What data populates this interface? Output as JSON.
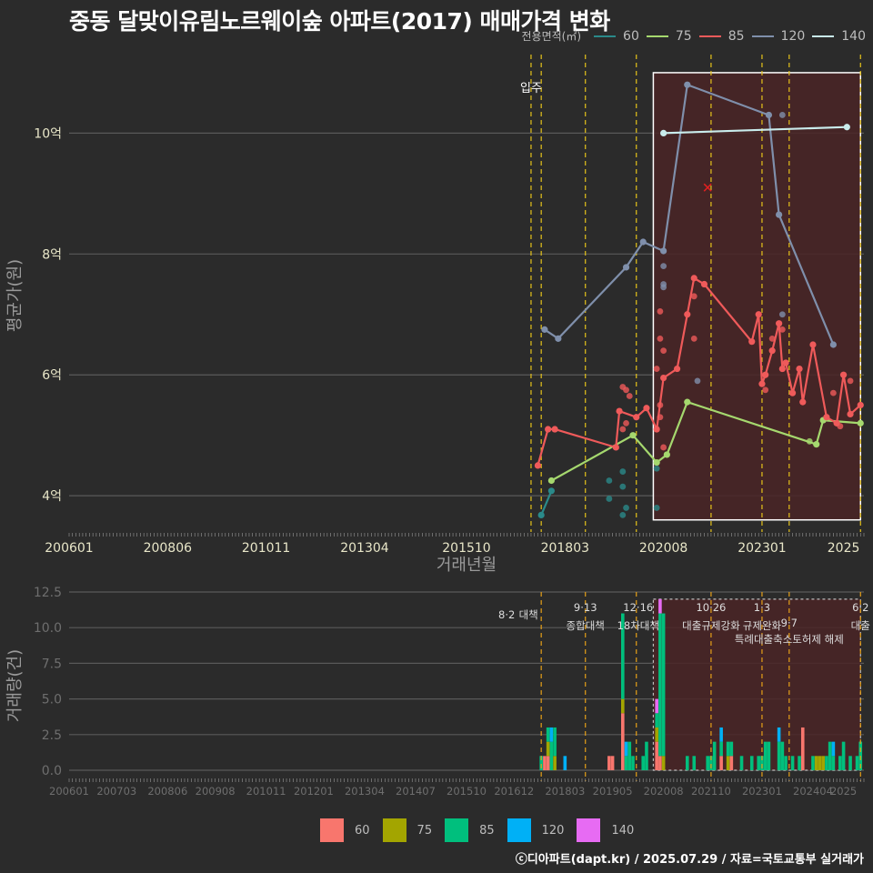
{
  "title": "중동 달맞이유림노르웨이숲 아파트(2017) 매매가격 변화",
  "legend_title": "전용면적(㎡)",
  "footer": "ⓒ디아파트(dapt.kr) / 2025.07.29 / 자료=국토교통부 실거래가",
  "colors": {
    "background": "#2b2b2b",
    "line_60": "#2a8a8a",
    "line_75": "#a5d86e",
    "line_85": "#ef5a5a",
    "line_120": "#7f8fab",
    "line_140": "#c9ecec",
    "bar_60": "#f8766d",
    "bar_75": "#a3a500",
    "bar_85": "#00bf7d",
    "bar_120": "#00b0f6",
    "bar_140": "#e76bf3",
    "policy_line": "#e6c31a",
    "highlight_fill": "#4a2526",
    "highlight_border": "#ffffff"
  },
  "chart_data": [
    {
      "type": "line",
      "title": "중동 달맞이유림노르웨이숲 아파트(2017) 매매가격 변화",
      "xlabel": "거래년월",
      "ylabel": "평균가(원)",
      "x_ticks": [
        "200601",
        "200806",
        "201011",
        "201304",
        "201510",
        "201803",
        "202008",
        "202301",
        "2025"
      ],
      "y_ticks": [
        {
          "value": 4,
          "label": "4억"
        },
        {
          "value": 6,
          "label": "6억"
        },
        {
          "value": 8,
          "label": "8억"
        },
        {
          "value": 10,
          "label": "10억"
        }
      ],
      "xlim": [
        "2006-01",
        "2025-07"
      ],
      "ylim": [
        3.4,
        11.3
      ],
      "y_unit": "억",
      "grid": true,
      "legend_position": "top-right",
      "annotation_label": "입주",
      "annotation_x": "2017-05",
      "event_lines": [
        "2017-05",
        "2017-08",
        "2018-09",
        "2019-12",
        "2021-10",
        "2023-01",
        "2023-09",
        "2025-06"
      ],
      "highlight_box": {
        "x": [
          "2020-05",
          "2025-06"
        ],
        "y": [
          3.6,
          11.0
        ]
      },
      "marker": {
        "x": "2021-09",
        "y": 9.1,
        "symbol": "x"
      },
      "series": [
        {
          "name": "60",
          "points": [
            [
              "2017-08",
              3.68
            ],
            [
              "2017-11",
              4.08
            ]
          ]
        },
        {
          "name": "75",
          "points": [
            [
              "2017-11",
              4.25
            ],
            [
              "2019-11",
              5.0
            ],
            [
              "2020-06",
              4.55
            ],
            [
              "2020-09",
              4.68
            ],
            [
              "2021-03",
              5.55
            ],
            [
              "2024-05",
              4.85
            ],
            [
              "2024-07",
              5.25
            ],
            [
              "2025-06",
              5.2
            ]
          ]
        },
        {
          "name": "85",
          "points": [
            [
              "2017-07",
              4.5
            ],
            [
              "2017-10",
              5.1
            ],
            [
              "2017-12",
              5.1
            ],
            [
              "2019-06",
              4.8
            ],
            [
              "2019-07",
              5.4
            ],
            [
              "2019-12",
              5.3
            ],
            [
              "2020-03",
              5.45
            ],
            [
              "2020-06",
              5.1
            ],
            [
              "2020-08",
              5.95
            ],
            [
              "2020-12",
              6.1
            ],
            [
              "2021-03",
              7.0
            ],
            [
              "2021-05",
              7.6
            ],
            [
              "2021-08",
              7.5
            ],
            [
              "2022-10",
              6.55
            ],
            [
              "2022-12",
              7.0
            ],
            [
              "2023-01",
              5.85
            ],
            [
              "2023-02",
              6.0
            ],
            [
              "2023-04",
              6.4
            ],
            [
              "2023-06",
              6.85
            ],
            [
              "2023-07",
              6.1
            ],
            [
              "2023-08",
              6.2
            ],
            [
              "2023-10",
              5.7
            ],
            [
              "2023-12",
              6.1
            ],
            [
              "2024-01",
              5.55
            ],
            [
              "2024-04",
              6.5
            ],
            [
              "2024-08",
              5.3
            ],
            [
              "2024-11",
              5.2
            ],
            [
              "2025-01",
              6.0
            ],
            [
              "2025-03",
              5.35
            ],
            [
              "2025-06",
              5.5
            ]
          ]
        },
        {
          "name": "120",
          "points": [
            [
              "2017-09",
              6.75
            ],
            [
              "2018-01",
              6.6
            ],
            [
              "2019-09",
              7.78
            ],
            [
              "2020-02",
              8.2
            ],
            [
              "2020-08",
              8.05
            ],
            [
              "2021-03",
              10.8
            ],
            [
              "2023-03",
              10.3
            ],
            [
              "2023-06",
              8.65
            ],
            [
              "2024-10",
              6.5
            ]
          ]
        },
        {
          "name": "140",
          "points": [
            [
              "2020-08",
              10.0
            ],
            [
              "2025-02",
              10.1
            ]
          ]
        }
      ],
      "extra_points": [
        {
          "series": "60",
          "points": [
            [
              "2019-04",
              3.95
            ],
            [
              "2019-04",
              4.25
            ],
            [
              "2019-08",
              4.15
            ],
            [
              "2019-08",
              3.68
            ],
            [
              "2019-09",
              3.8
            ],
            [
              "2019-08",
              4.4
            ],
            [
              "2020-06",
              3.8
            ],
            [
              "2020-06",
              4.45
            ]
          ]
        },
        {
          "series": "75",
          "points": [
            [
              "2024-03",
              4.9
            ]
          ]
        },
        {
          "series": "85",
          "points": [
            [
              "2019-08",
              5.8
            ],
            [
              "2019-09",
              5.75
            ],
            [
              "2019-10",
              5.65
            ],
            [
              "2019-08",
              5.1
            ],
            [
              "2019-09",
              5.2
            ],
            [
              "2020-07",
              7.05
            ],
            [
              "2020-07",
              6.6
            ],
            [
              "2020-08",
              6.4
            ],
            [
              "2020-06",
              6.1
            ],
            [
              "2020-07",
              5.5
            ],
            [
              "2020-07",
              5.3
            ],
            [
              "2020-08",
              4.8
            ],
            [
              "2021-05",
              7.3
            ],
            [
              "2021-05",
              6.6
            ],
            [
              "2023-02",
              5.75
            ],
            [
              "2023-04",
              6.6
            ],
            [
              "2023-07",
              6.75
            ],
            [
              "2024-10",
              5.7
            ],
            [
              "2024-12",
              5.15
            ],
            [
              "2025-03",
              5.9
            ]
          ]
        },
        {
          "series": "120",
          "points": [
            [
              "2020-08",
              7.8
            ],
            [
              "2020-08",
              7.5
            ],
            [
              "2020-08",
              7.45
            ],
            [
              "2021-06",
              5.9
            ],
            [
              "2023-07",
              10.3
            ],
            [
              "2023-07",
              7.0
            ]
          ]
        }
      ]
    },
    {
      "type": "bar",
      "xlabel": "",
      "ylabel": "거래량(건)",
      "x_ticks": [
        "200601",
        "200703",
        "200806",
        "200908",
        "201011",
        "201201",
        "201304",
        "201407",
        "201510",
        "201612",
        "201803",
        "201905",
        "202008",
        "202110",
        "202301",
        "202404",
        "2025"
      ],
      "y_ticks": [
        0.0,
        2.5,
        5.0,
        7.5,
        10.0,
        12.5
      ],
      "ylim": [
        0,
        12.5
      ],
      "grid": true,
      "legend_position": "bottom",
      "stacked": true,
      "policy_events": [
        {
          "x": "2017-08",
          "date": "8·2",
          "label": "대책"
        },
        {
          "x": "2018-09",
          "date": "9·13",
          "label": "종합대책"
        },
        {
          "x": "2019-12",
          "date": "12·16",
          "label": "18차대책"
        },
        {
          "x": "2021-10",
          "date": "10·26",
          "label": "대출규제강화"
        },
        {
          "x": "2023-01",
          "date": "1·3",
          "label": "규제완화"
        },
        {
          "x": "2023-09",
          "date": "9·7",
          "label": "특례대출축소토허제 해제"
        },
        {
          "x": "2025-06",
          "date": "6·2",
          "label": "대출"
        }
      ],
      "highlight_box": {
        "x": [
          "2020-05",
          "2025-06"
        ],
        "y": [
          0,
          12
        ]
      },
      "series_names": [
        "60",
        "75",
        "85",
        "120",
        "140"
      ],
      "data": [
        {
          "x": "2017-08",
          "60": 0,
          "75": 0,
          "85": 1,
          "120": 0,
          "140": 0
        },
        {
          "x": "2017-09",
          "60": 1,
          "75": 0,
          "85": 0,
          "120": 0,
          "140": 0
        },
        {
          "x": "2017-10",
          "60": 1,
          "75": 1,
          "85": 1,
          "120": 0,
          "140": 0
        },
        {
          "x": "2017-11",
          "60": 0,
          "75": 0,
          "85": 2,
          "120": 1,
          "140": 0
        },
        {
          "x": "2017-12",
          "60": 0,
          "75": 1,
          "85": 2,
          "120": 0,
          "140": 0
        },
        {
          "x": "2018-03",
          "60": 0,
          "75": 0,
          "85": 0,
          "120": 1,
          "140": 0
        },
        {
          "x": "2019-04",
          "60": 1,
          "75": 0,
          "85": 0,
          "120": 0,
          "140": 0
        },
        {
          "x": "2019-05",
          "60": 1,
          "75": 0,
          "85": 0,
          "120": 0,
          "140": 0
        },
        {
          "x": "2019-08",
          "60": 4,
          "75": 1,
          "85": 6,
          "120": 0,
          "140": 0
        },
        {
          "x": "2019-09",
          "60": 0,
          "75": 0,
          "85": 1,
          "120": 1,
          "140": 0
        },
        {
          "x": "2019-10",
          "60": 0,
          "75": 0,
          "85": 2,
          "120": 0,
          "140": 0
        },
        {
          "x": "2019-11",
          "60": 0,
          "75": 0,
          "85": 1,
          "120": 0,
          "140": 0
        },
        {
          "x": "2020-02",
          "60": 0,
          "75": 0,
          "85": 1,
          "120": 0,
          "140": 0
        },
        {
          "x": "2020-03",
          "60": 0,
          "75": 0,
          "85": 2,
          "120": 0,
          "140": 0
        },
        {
          "x": "2020-06",
          "60": 2,
          "75": 1,
          "85": 1,
          "120": 0,
          "140": 1
        },
        {
          "x": "2020-07",
          "60": 1,
          "75": 0,
          "85": 10,
          "120": 0,
          "140": 1
        },
        {
          "x": "2020-08",
          "60": 0,
          "75": 1,
          "85": 10,
          "120": 0,
          "140": 0
        },
        {
          "x": "2021-03",
          "60": 0,
          "75": 0,
          "85": 1,
          "120": 0,
          "140": 0
        },
        {
          "x": "2021-05",
          "60": 0,
          "75": 0,
          "85": 1,
          "120": 0,
          "140": 0
        },
        {
          "x": "2021-09",
          "60": 0,
          "75": 0,
          "85": 1,
          "120": 0,
          "140": 0
        },
        {
          "x": "2021-10",
          "60": 0,
          "75": 0,
          "85": 1,
          "120": 0,
          "140": 0
        },
        {
          "x": "2021-11",
          "60": 0,
          "75": 0,
          "85": 2,
          "120": 0,
          "140": 0
        },
        {
          "x": "2022-01",
          "60": 1,
          "75": 0,
          "85": 1,
          "120": 1,
          "140": 0
        },
        {
          "x": "2022-03",
          "60": 0,
          "75": 1,
          "85": 1,
          "120": 0,
          "140": 0
        },
        {
          "x": "2022-04",
          "60": 1,
          "75": 0,
          "85": 1,
          "120": 0,
          "140": 0
        },
        {
          "x": "2022-07",
          "60": 0,
          "75": 0,
          "85": 1,
          "120": 0,
          "140": 0
        },
        {
          "x": "2022-10",
          "60": 0,
          "75": 0,
          "85": 1,
          "120": 0,
          "140": 0
        },
        {
          "x": "2022-12",
          "60": 0,
          "75": 0,
          "85": 1,
          "120": 0,
          "140": 0
        },
        {
          "x": "2023-01",
          "60": 0,
          "75": 0,
          "85": 1,
          "120": 0,
          "140": 0
        },
        {
          "x": "2023-02",
          "60": 0,
          "75": 0,
          "85": 2,
          "120": 0,
          "140": 0
        },
        {
          "x": "2023-03",
          "60": 0,
          "75": 0,
          "85": 2,
          "120": 0,
          "140": 0
        },
        {
          "x": "2023-06",
          "60": 0,
          "75": 0,
          "85": 2,
          "120": 1,
          "140": 0
        },
        {
          "x": "2023-07",
          "60": 0,
          "75": 0,
          "85": 2,
          "120": 0,
          "140": 0
        },
        {
          "x": "2023-08",
          "60": 0,
          "75": 0,
          "85": 1,
          "120": 0,
          "140": 0
        },
        {
          "x": "2023-10",
          "60": 0,
          "75": 0,
          "85": 1,
          "120": 0,
          "140": 0
        },
        {
          "x": "2023-12",
          "60": 0,
          "75": 0,
          "85": 1,
          "120": 0,
          "140": 0
        },
        {
          "x": "2024-01",
          "60": 3,
          "75": 0,
          "85": 0,
          "120": 0,
          "140": 0
        },
        {
          "x": "2024-04",
          "60": 0,
          "75": 0,
          "85": 1,
          "120": 0,
          "140": 0
        },
        {
          "x": "2024-05",
          "60": 0,
          "75": 1,
          "85": 0,
          "120": 0,
          "140": 0
        },
        {
          "x": "2024-06",
          "60": 0,
          "75": 1,
          "85": 0,
          "120": 0,
          "140": 0
        },
        {
          "x": "2024-07",
          "60": 0,
          "75": 1,
          "85": 0,
          "120": 0,
          "140": 0
        },
        {
          "x": "2024-08",
          "60": 0,
          "75": 0,
          "85": 1,
          "120": 0,
          "140": 0
        },
        {
          "x": "2024-09",
          "60": 0,
          "75": 0,
          "85": 2,
          "120": 0,
          "140": 0
        },
        {
          "x": "2024-10",
          "60": 0,
          "75": 0,
          "85": 1,
          "120": 1,
          "140": 0
        },
        {
          "x": "2024-12",
          "60": 0,
          "75": 0,
          "85": 1,
          "120": 0,
          "140": 0
        },
        {
          "x": "2025-01",
          "60": 0,
          "75": 0,
          "85": 2,
          "120": 0,
          "140": 0
        },
        {
          "x": "2025-03",
          "60": 0,
          "75": 0,
          "85": 1,
          "120": 0,
          "140": 0
        },
        {
          "x": "2025-05",
          "60": 0,
          "75": 0,
          "85": 1,
          "120": 0,
          "140": 0
        },
        {
          "x": "2025-06",
          "60": 0,
          "75": 0,
          "85": 2,
          "120": 0,
          "140": 0
        }
      ]
    }
  ]
}
